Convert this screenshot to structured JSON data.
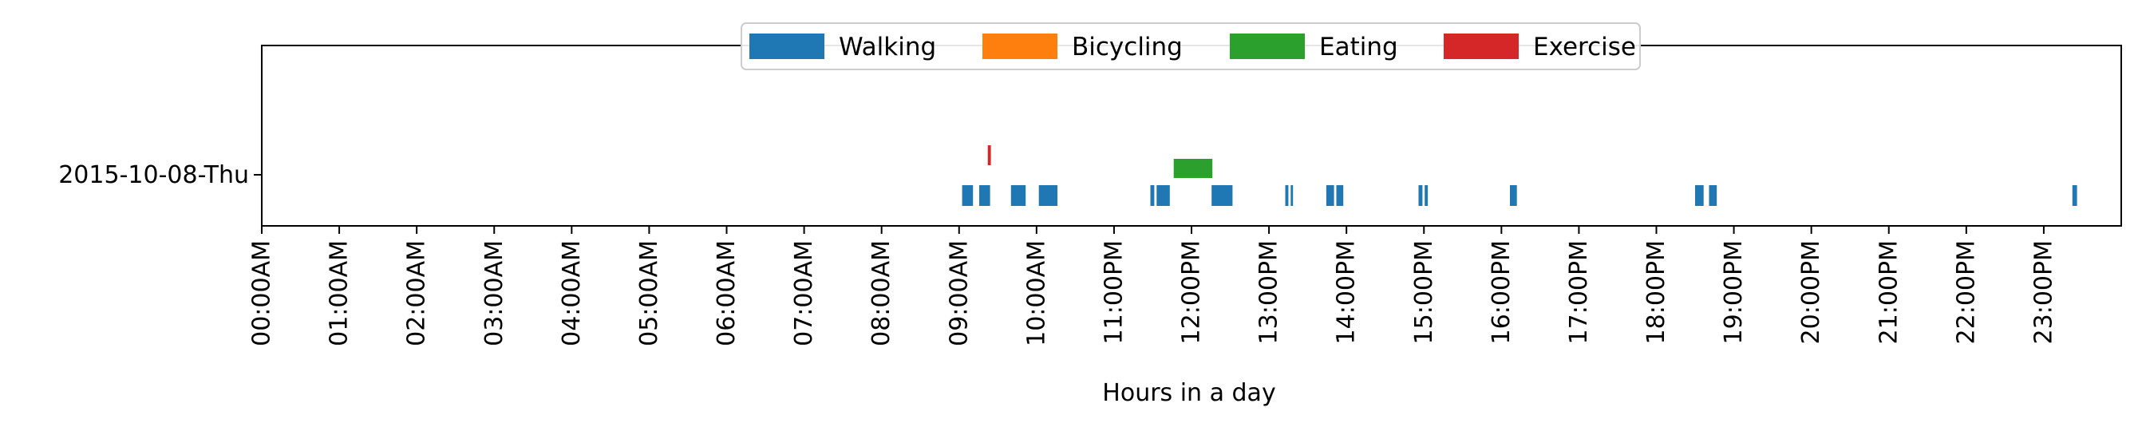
{
  "chart_data": {
    "type": "timeline",
    "xlabel": "Hours in a day",
    "xlim": [
      0,
      24
    ],
    "xticks": [
      {
        "value": 0,
        "label": "00:00AM"
      },
      {
        "value": 1,
        "label": "01:00AM"
      },
      {
        "value": 2,
        "label": "02:00AM"
      },
      {
        "value": 3,
        "label": "03:00AM"
      },
      {
        "value": 4,
        "label": "04:00AM"
      },
      {
        "value": 5,
        "label": "05:00AM"
      },
      {
        "value": 6,
        "label": "06:00AM"
      },
      {
        "value": 7,
        "label": "07:00AM"
      },
      {
        "value": 8,
        "label": "08:00AM"
      },
      {
        "value": 9,
        "label": "09:00AM"
      },
      {
        "value": 10,
        "label": "10:00AM"
      },
      {
        "value": 11,
        "label": "11:00PM"
      },
      {
        "value": 12,
        "label": "12:00PM"
      },
      {
        "value": 13,
        "label": "13:00PM"
      },
      {
        "value": 14,
        "label": "14:00PM"
      },
      {
        "value": 15,
        "label": "15:00PM"
      },
      {
        "value": 16,
        "label": "16:00PM"
      },
      {
        "value": 17,
        "label": "17:00PM"
      },
      {
        "value": 18,
        "label": "18:00PM"
      },
      {
        "value": 19,
        "label": "19:00PM"
      },
      {
        "value": 20,
        "label": "20:00PM"
      },
      {
        "value": 21,
        "label": "21:00PM"
      },
      {
        "value": 22,
        "label": "22:00PM"
      },
      {
        "value": 23,
        "label": "23:00PM"
      }
    ],
    "yticks": [
      {
        "label": "2015-10-08-Thu"
      }
    ],
    "legend": {
      "position": "top-center"
    },
    "series": [
      {
        "name": "Walking",
        "color": "#1f77b4",
        "intervals": [
          [
            9.04,
            9.18
          ],
          [
            9.26,
            9.4
          ],
          [
            9.67,
            9.86
          ],
          [
            10.03,
            10.27
          ],
          [
            11.47,
            11.52
          ],
          [
            11.55,
            11.72
          ],
          [
            12.26,
            12.53
          ],
          [
            13.21,
            13.25
          ],
          [
            13.28,
            13.31
          ],
          [
            13.74,
            13.84
          ],
          [
            13.87,
            13.96
          ],
          [
            14.93,
            14.98
          ],
          [
            15.01,
            15.05
          ],
          [
            16.11,
            16.2
          ],
          [
            18.5,
            18.61
          ],
          [
            18.68,
            18.78
          ],
          [
            23.37,
            23.43
          ]
        ]
      },
      {
        "name": "Bicycling",
        "color": "#ff7f0e",
        "intervals": []
      },
      {
        "name": "Eating",
        "color": "#2ca02c",
        "intervals": [
          [
            11.77,
            12.27
          ]
        ]
      },
      {
        "name": "Exercise",
        "color": "#d62728",
        "intervals": [
          [
            9.37,
            9.41
          ]
        ]
      }
    ]
  }
}
